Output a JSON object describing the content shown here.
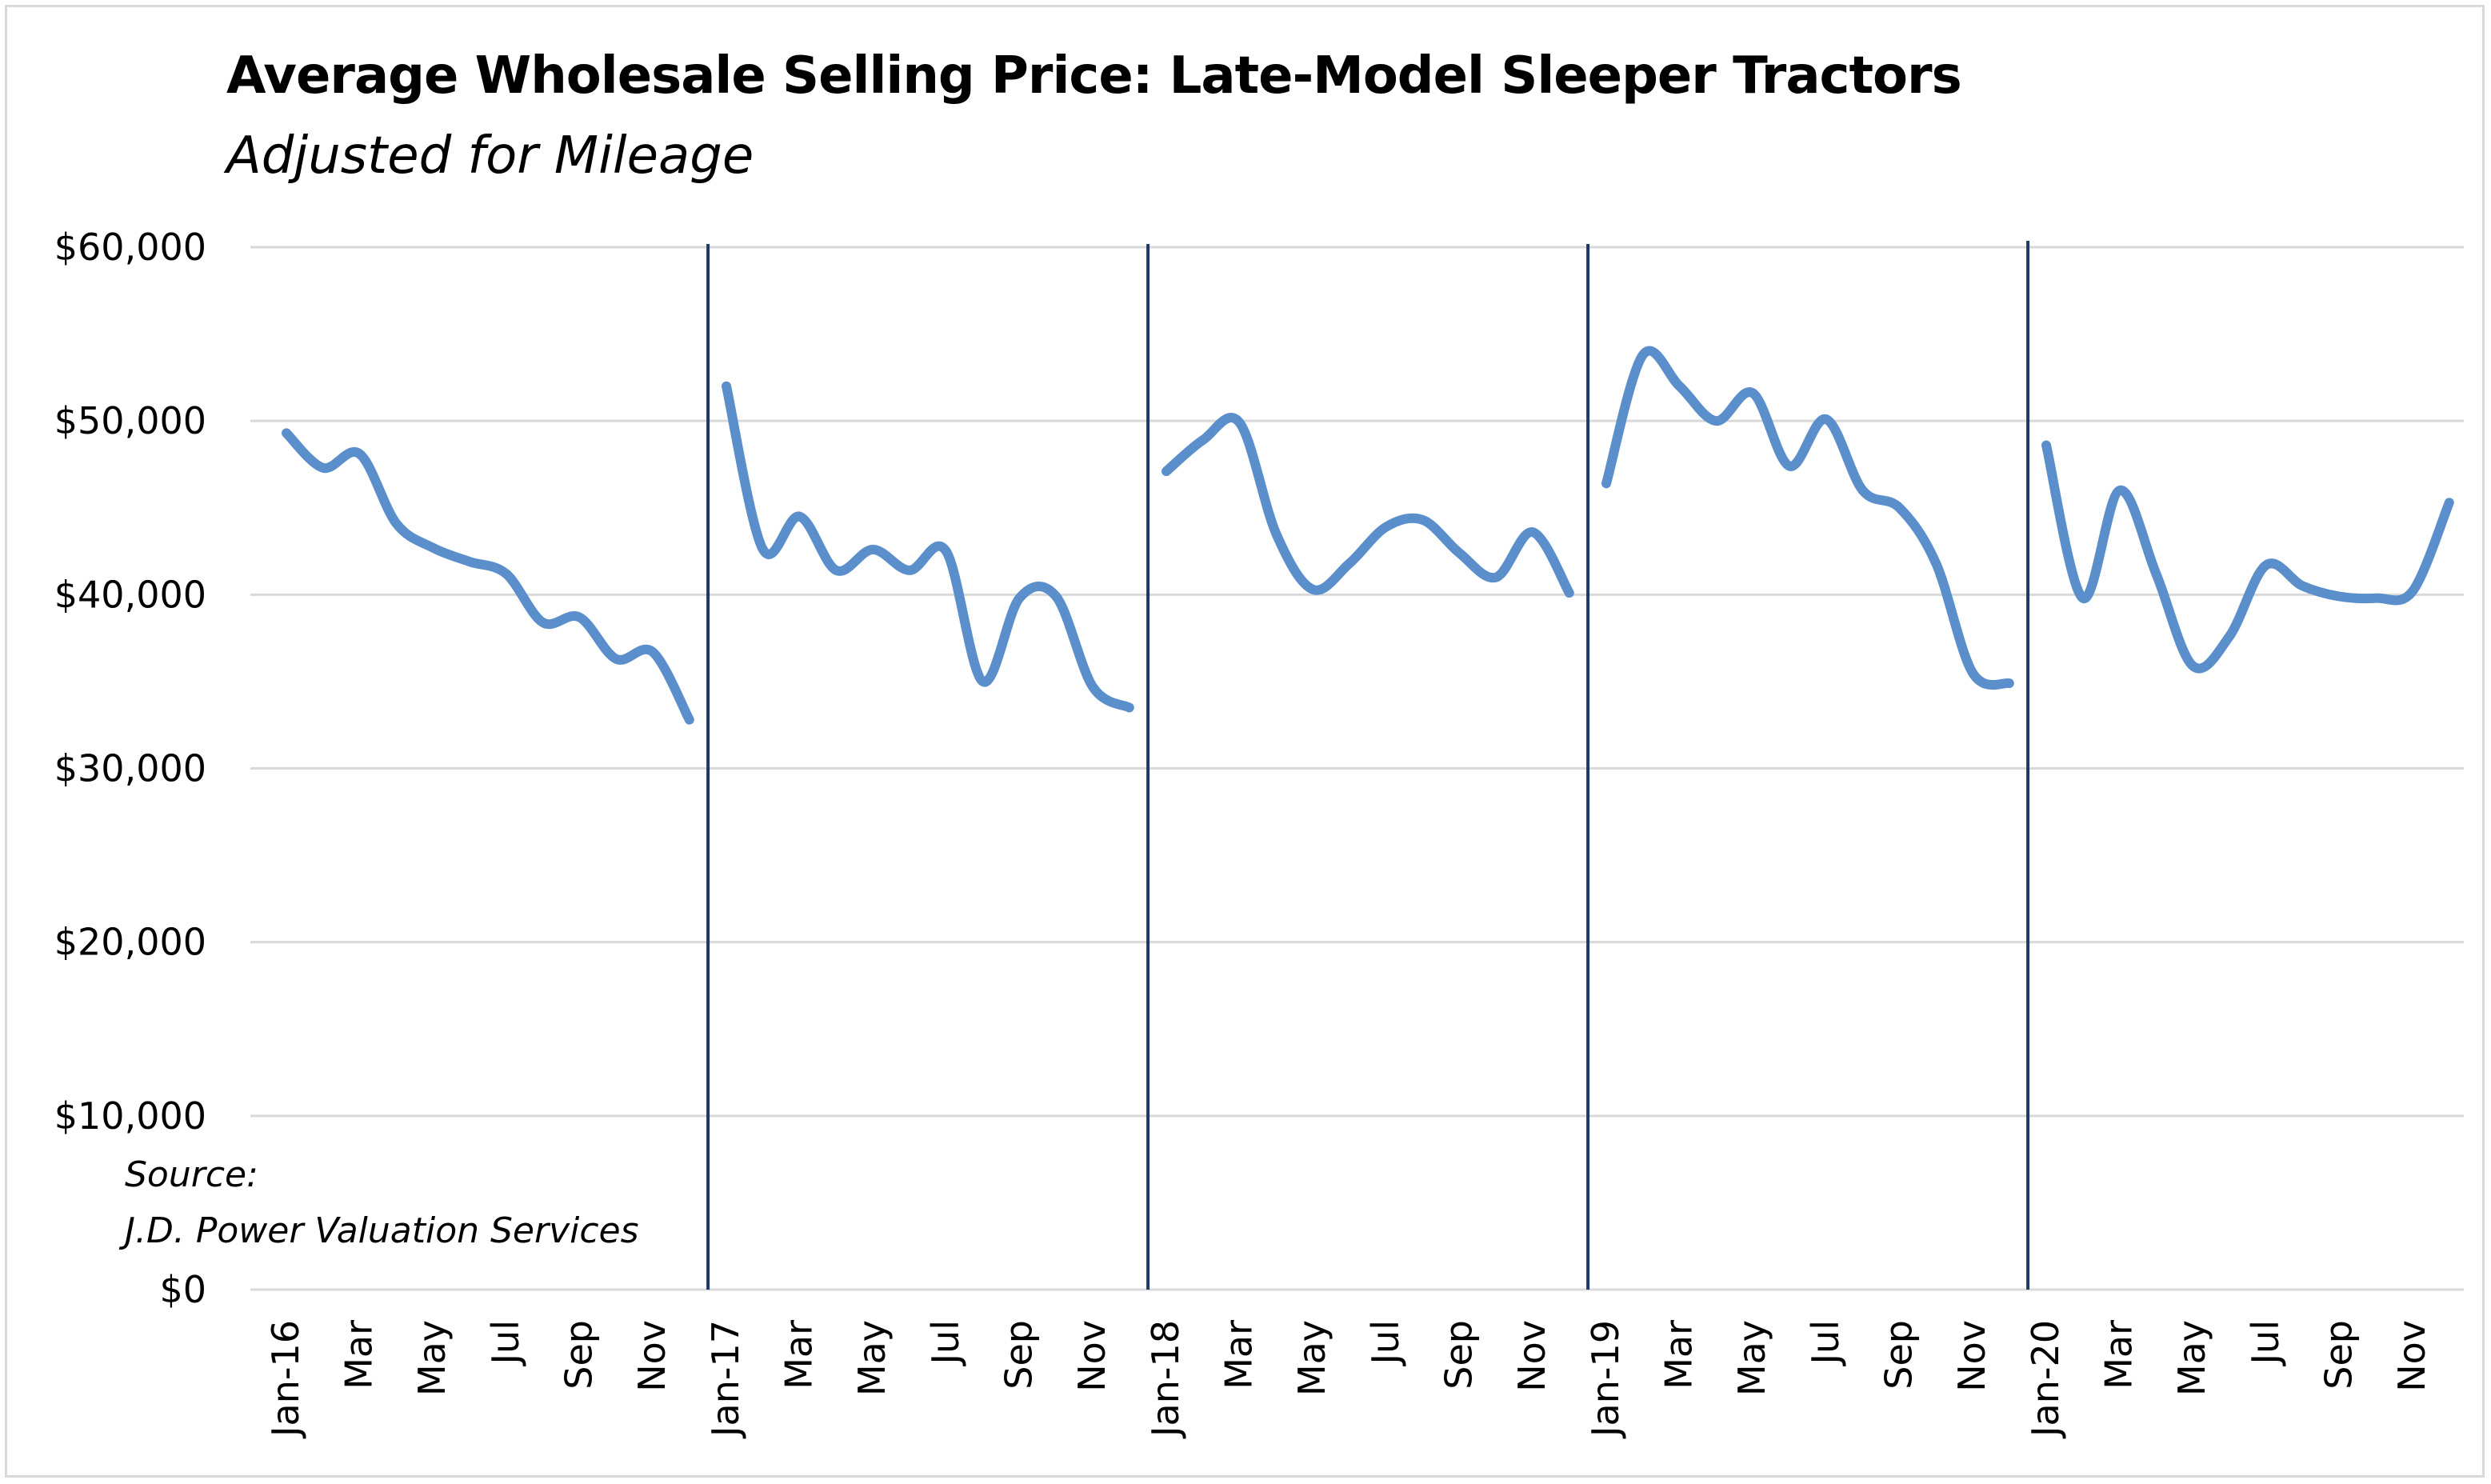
{
  "chart_data": {
    "type": "line",
    "title": "Average Wholesale Selling Price: Late-Model Sleeper Tractors",
    "subtitle": "Adjusted for Mileage",
    "xlabel": "",
    "ylabel": "",
    "ylim": [
      0,
      60000
    ],
    "y_ticks": [
      "$0",
      "$10,000",
      "$20,000",
      "$30,000",
      "$40,000",
      "$50,000",
      "$60,000"
    ],
    "y_tick_values": [
      0,
      10000,
      20000,
      30000,
      40000,
      50000,
      60000
    ],
    "grid": true,
    "legend": "none",
    "x_tick_labels": [
      "Jan-16",
      "Mar",
      "May",
      "Jul",
      "Sep",
      "Nov",
      "Jan-17",
      "Mar",
      "May",
      "Jul",
      "Sep",
      "Nov",
      "Jan-18",
      "Mar",
      "May",
      "Jul",
      "Sep",
      "Nov",
      "Jan-19",
      "Mar",
      "May",
      "Jul",
      "Sep",
      "Nov",
      "Jan-20",
      "Mar",
      "May",
      "Jul",
      "Sep",
      "Nov"
    ],
    "year_separators": [
      "Jan-17",
      "Jan-18",
      "Jan-19",
      "Jan-20"
    ],
    "series": [
      {
        "color": "#5b8fcc",
        "segments": [
          {
            "x": [
              "Jan-16",
              "Feb-16",
              "Mar-16",
              "Apr-16",
              "May-16",
              "Jun-16",
              "Jul-16",
              "Aug-16",
              "Sep-16",
              "Oct-16",
              "Nov-16",
              "Dec-16"
            ],
            "values": [
              49300,
              47300,
              48100,
              44100,
              42700,
              41900,
              41200,
              38400,
              38700,
              36300,
              36700,
              32800
            ]
          },
          {
            "x": [
              "Jan-17",
              "Feb-17",
              "Mar-17",
              "Apr-17",
              "May-17",
              "Jun-17",
              "Jul-17",
              "Aug-17",
              "Sep-17",
              "Oct-17",
              "Nov-17",
              "Dec-17"
            ],
            "values": [
              52000,
              42600,
              44500,
              41400,
              42600,
              41400,
              42500,
              35000,
              39800,
              39900,
              34700,
              33500
            ]
          },
          {
            "x": [
              "Jan-18",
              "Feb-18",
              "Mar-18",
              "Apr-18",
              "May-18",
              "Jun-18",
              "Jul-18",
              "Aug-18",
              "Sep-18",
              "Oct-18",
              "Nov-18",
              "Dec-18"
            ],
            "values": [
              47100,
              48900,
              49900,
              43500,
              40300,
              41800,
              43900,
              44300,
              42400,
              41000,
              43600,
              40100
            ]
          },
          {
            "x": [
              "Jan-19",
              "Feb-19",
              "Mar-19",
              "Apr-19",
              "May-19",
              "Jun-19",
              "Jul-19",
              "Aug-19",
              "Sep-19",
              "Oct-19",
              "Nov-19",
              "Dec-19"
            ],
            "values": [
              46400,
              53800,
              52000,
              50000,
              51600,
              47400,
              50100,
              46000,
              45000,
              41800,
              35500,
              34900
            ]
          },
          {
            "x": [
              "Jan-20",
              "Feb-20",
              "Mar-20",
              "Apr-20",
              "May-20",
              "Jun-20",
              "Jul-20",
              "Aug-20",
              "Sep-20",
              "Oct-20",
              "Nov-20",
              "Dec-20"
            ],
            "values": [
              48600,
              39800,
              46000,
              41200,
              35900,
              37600,
              41700,
              40500,
              39900,
              39800,
              40200,
              45300
            ]
          }
        ]
      }
    ],
    "source_note": [
      "Source:",
      "J.D. Power Valuation Services"
    ]
  }
}
